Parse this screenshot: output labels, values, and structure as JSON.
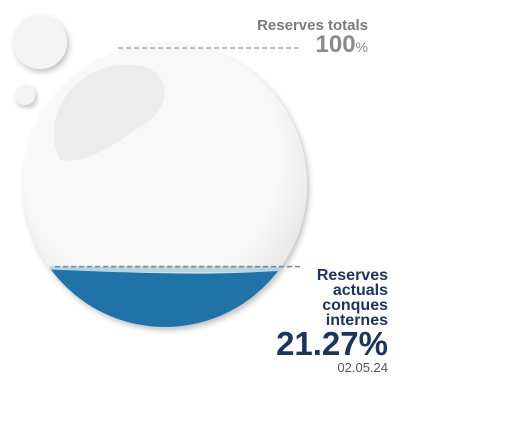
{
  "chart_data": {
    "type": "liquid",
    "max_label": "Reserves totals",
    "max": 100,
    "unit": "%",
    "label": "Reserves actuals conques internes",
    "values": [
      21.27
    ],
    "value_labels": [
      "21.27%"
    ],
    "date": "02.05.24",
    "color": "#1f73a8"
  }
}
